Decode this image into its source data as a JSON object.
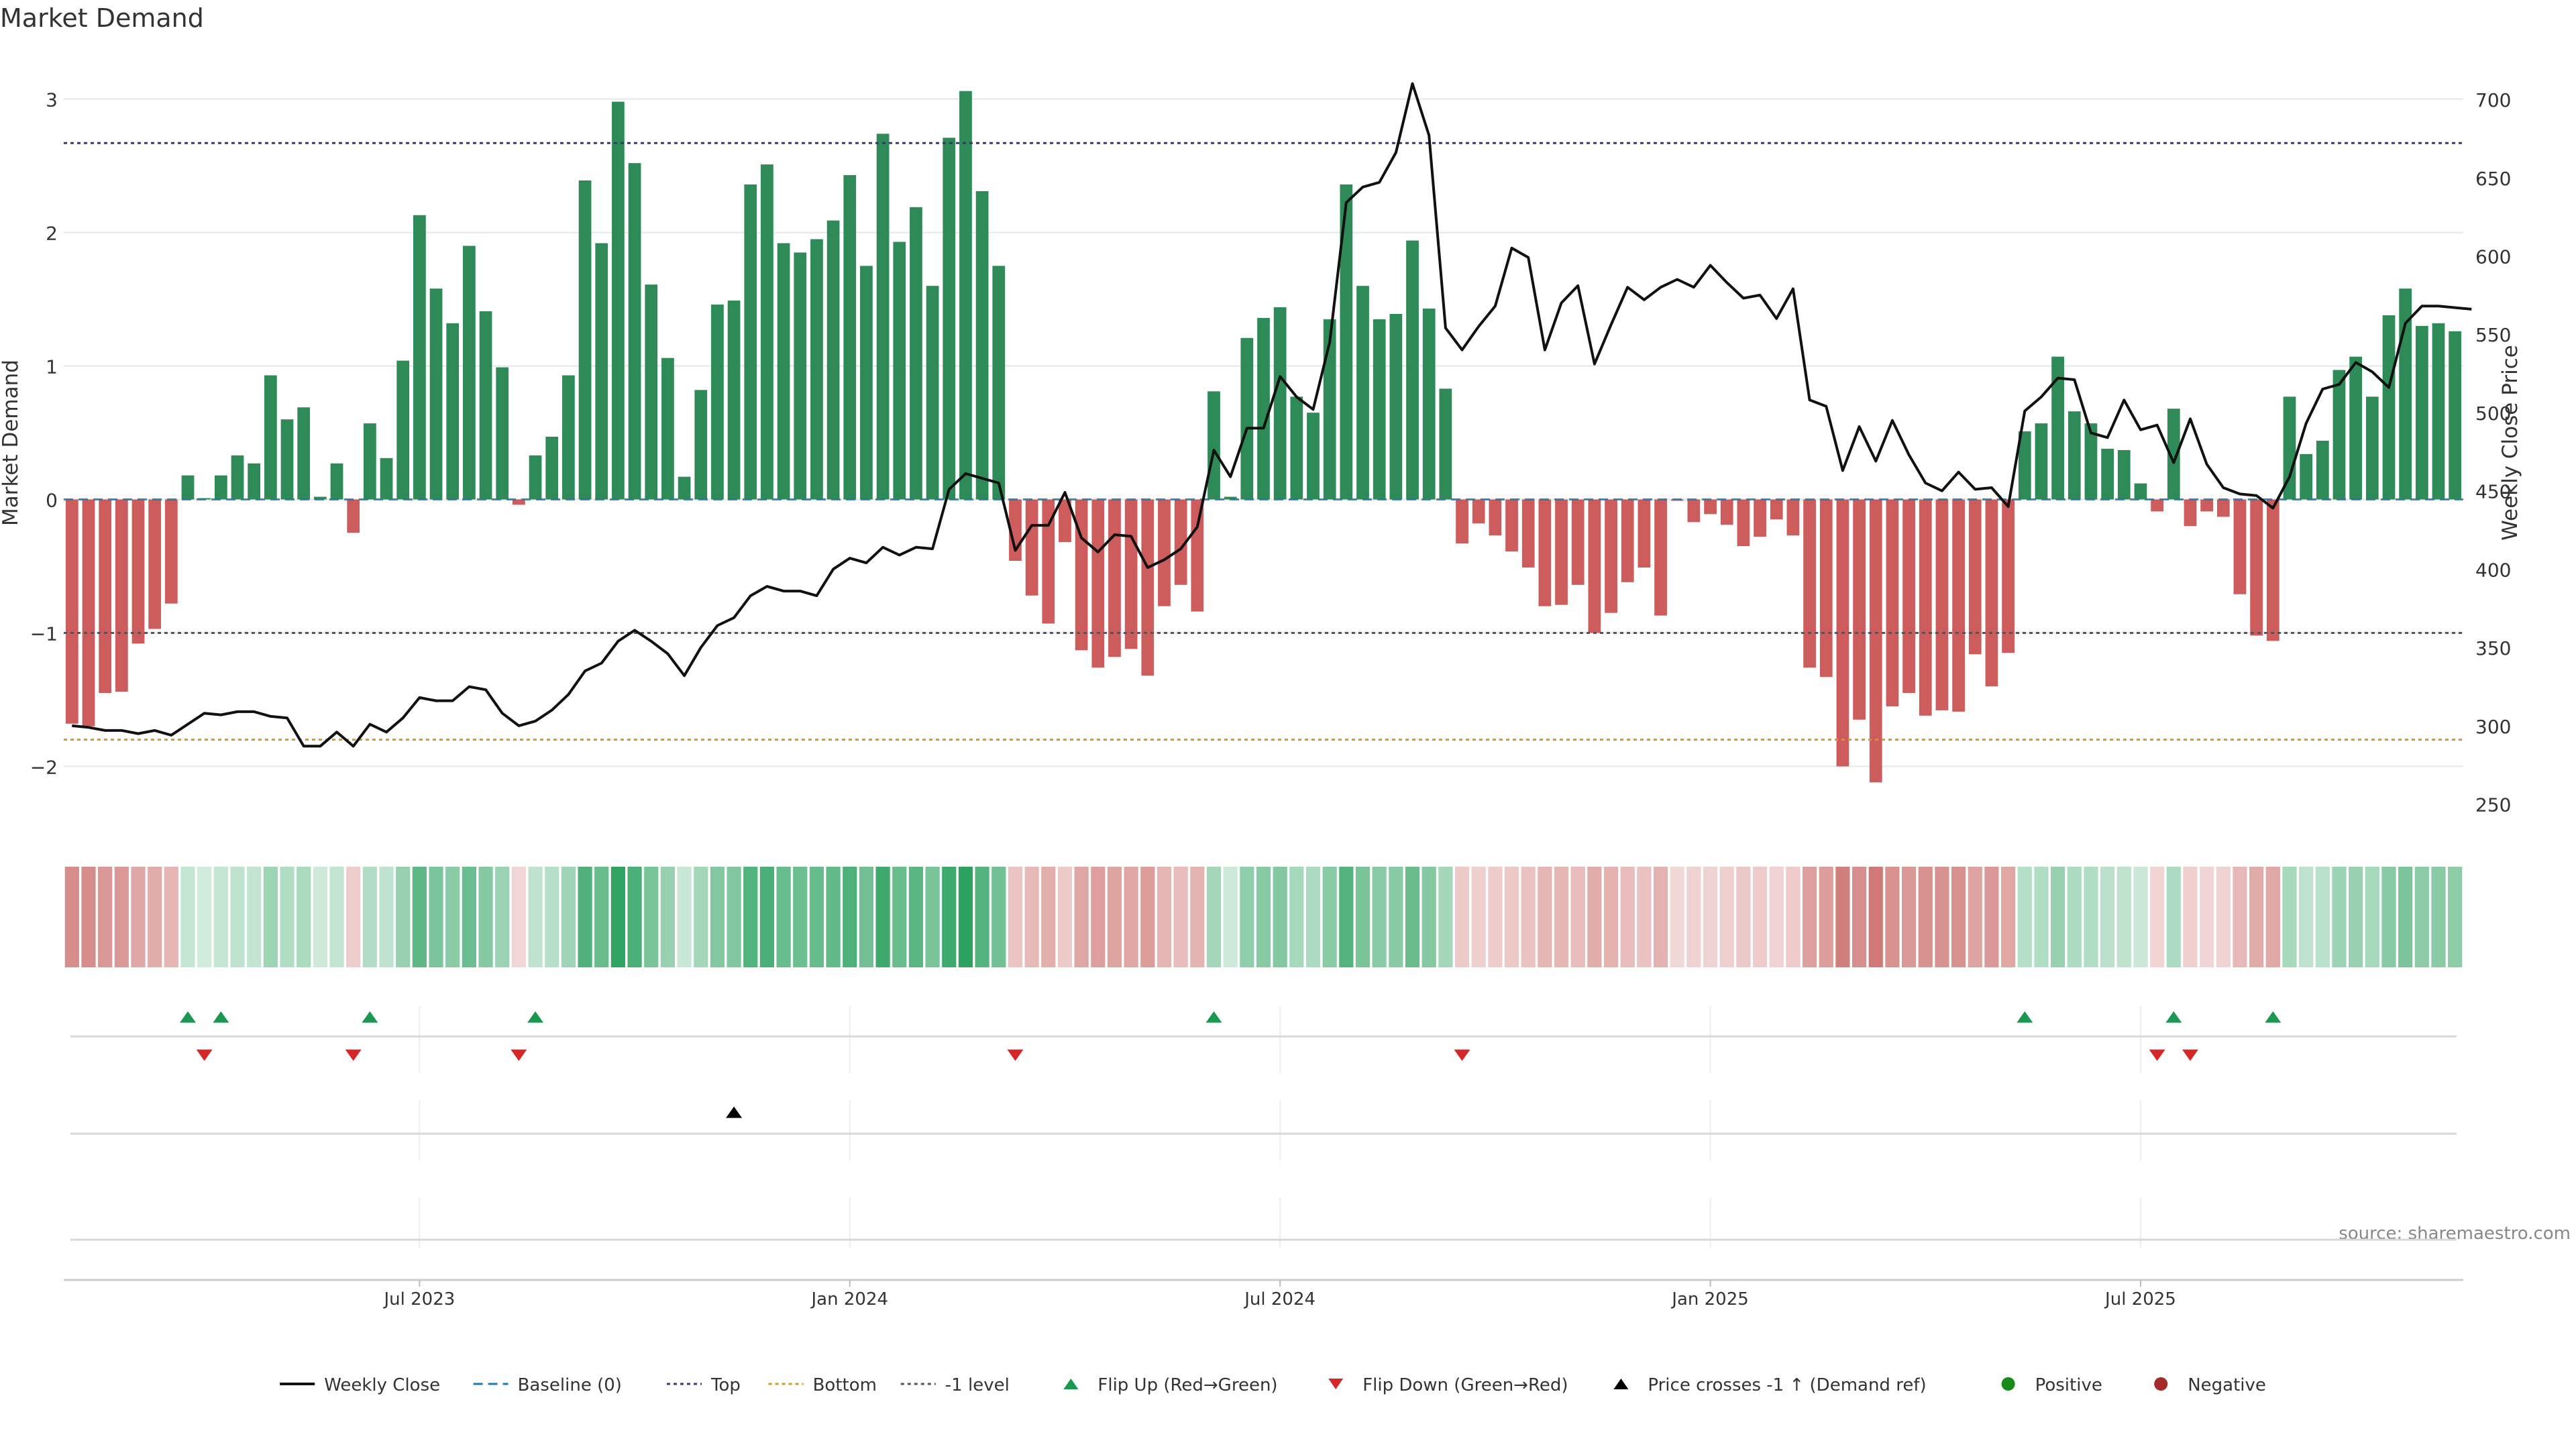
{
  "chart_data": {
    "type": "bar",
    "title": "Market Demand",
    "ylabel_left": "Market Demand",
    "ylabel_right": "Weekly Close Price",
    "source": "source: sharemaestro.com",
    "ylim_left": [
      -2.4,
      3.35
    ],
    "ylim_right": [
      240,
      730
    ],
    "yticks_left": [
      "3",
      "2",
      "1",
      "0",
      "−1",
      "−2"
    ],
    "yticks_right": [
      "700",
      "650",
      "600",
      "550",
      "500",
      "450",
      "400",
      "350",
      "300",
      "250"
    ],
    "yticks_left_values": [
      3,
      2,
      1,
      0,
      -1,
      -2
    ],
    "yticks_right_values": [
      700,
      650,
      600,
      550,
      500,
      450,
      400,
      350,
      300,
      250
    ],
    "x_ticks": [
      {
        "label": "Jul 2023",
        "week": 21
      },
      {
        "label": "Jan 2024",
        "week": 47
      },
      {
        "label": "Jul 2024",
        "week": 73
      },
      {
        "label": "Jan 2025",
        "week": 99
      },
      {
        "label": "Jul 2025",
        "week": 125
      }
    ],
    "reference_lines": {
      "top": 2.67,
      "bottom": -1.8,
      "minus_one": -1.0,
      "baseline": 0
    },
    "demand": [
      -1.68,
      -1.7,
      -1.45,
      -1.44,
      -1.08,
      -0.97,
      -0.78,
      0.18,
      0.01,
      0.18,
      0.33,
      0.27,
      0.93,
      0.6,
      0.69,
      0.02,
      0.27,
      -0.25,
      0.57,
      0.31,
      1.04,
      2.13,
      1.58,
      1.32,
      1.9,
      1.41,
      0.99,
      -0.04,
      0.33,
      0.47,
      0.93,
      2.39,
      1.92,
      2.98,
      2.52,
      1.61,
      1.06,
      0.17,
      0.82,
      1.46,
      1.49,
      2.36,
      2.51,
      1.92,
      1.85,
      1.95,
      2.09,
      2.43,
      1.75,
      2.74,
      1.93,
      2.19,
      1.6,
      2.71,
      3.06,
      2.31,
      1.75,
      -0.46,
      -0.72,
      -0.93,
      -0.32,
      -1.13,
      -1.26,
      -1.18,
      -1.12,
      -1.32,
      -0.8,
      -0.64,
      -0.84,
      0.81,
      0.02,
      1.21,
      1.36,
      1.44,
      0.77,
      0.65,
      1.35,
      2.36,
      1.6,
      1.35,
      1.39,
      1.94,
      1.43,
      0.83,
      -0.33,
      -0.18,
      -0.27,
      -0.39,
      -0.51,
      -0.8,
      -0.79,
      -0.64,
      -1.0,
      -0.85,
      -0.62,
      -0.51,
      -0.87,
      -0.01,
      -0.17,
      -0.11,
      -0.19,
      -0.35,
      -0.28,
      -0.15,
      -0.27,
      -1.26,
      -1.33,
      -2.0,
      -1.65,
      -2.12,
      -1.55,
      -1.45,
      -1.62,
      -1.58,
      -1.59,
      -1.16,
      -1.4,
      -1.15,
      0.51,
      0.57,
      1.07,
      0.66,
      0.57,
      0.38,
      0.37,
      0.12,
      -0.09,
      0.68,
      -0.2,
      -0.09,
      -0.13,
      -0.71,
      -1.02,
      -1.06,
      0.77,
      0.34,
      0.44,
      0.97,
      1.07,
      0.77,
      1.38,
      1.58,
      1.3,
      1.32,
      1.26
    ],
    "price": [
      300,
      299,
      297,
      297,
      295,
      297,
      294,
      301,
      308,
      307,
      309,
      309,
      306,
      305,
      287,
      287,
      296,
      287,
      301,
      296,
      305,
      318,
      316,
      316,
      325,
      323,
      308,
      300,
      303,
      310,
      320,
      335,
      340,
      354,
      361,
      354,
      346,
      332,
      350,
      364,
      369,
      383,
      389,
      386,
      386,
      383,
      400,
      407,
      404,
      414,
      409,
      414,
      413,
      451,
      461,
      458,
      455,
      412,
      428,
      428,
      449,
      420,
      411,
      422,
      421,
      401,
      406,
      413,
      427,
      476,
      459,
      490,
      490,
      523,
      510,
      502,
      545,
      634,
      644,
      647,
      666,
      710,
      677,
      554,
      540,
      555,
      568,
      605,
      599,
      540,
      570,
      581,
      531,
      556,
      580,
      572,
      580,
      585,
      580,
      594,
      583,
      573,
      575,
      560,
      579,
      508,
      504,
      463,
      491,
      469,
      495,
      473,
      455,
      450,
      462,
      451,
      452,
      440,
      501,
      510,
      522,
      521,
      487,
      484,
      508,
      489,
      492,
      468,
      496,
      467,
      452,
      448,
      447,
      439,
      459,
      493,
      515,
      518,
      532,
      526,
      516,
      557,
      568,
      568,
      567,
      566
    ],
    "flip_up_weeks": [
      7,
      9,
      18,
      28,
      69,
      118,
      127,
      133
    ],
    "flip_down_weeks": [
      8,
      17,
      27,
      57,
      84,
      126,
      128
    ],
    "price_cross_weeks": [
      40
    ],
    "legend": [
      {
        "label": "Weekly Close",
        "kind": "line-solid",
        "color": "#111111"
      },
      {
        "label": "Baseline (0)",
        "kind": "line-dash",
        "color": "#1f77b4"
      },
      {
        "label": "Top",
        "kind": "line-dot",
        "color": "#3a3a6a"
      },
      {
        "label": "Bottom",
        "kind": "line-dot",
        "color": "#d49a20"
      },
      {
        "label": "-1 level",
        "kind": "line-dot",
        "color": "#555555"
      },
      {
        "label": "Flip Up (Red→Green)",
        "kind": "tri-up",
        "color": "#1a9850"
      },
      {
        "label": "Flip Down (Green→Red)",
        "kind": "tri-down",
        "color": "#d62728"
      },
      {
        "label": "Price crosses -1 ↑ (Demand ref)",
        "kind": "tri-up",
        "color": "#000000"
      },
      {
        "label": "Positive",
        "kind": "dot",
        "color": "#1a8a1a"
      },
      {
        "label": "Negative",
        "kind": "dot",
        "color": "#a52a2a"
      }
    ],
    "colors": {
      "positive": "#2e8b57",
      "negative": "#cd5c5c",
      "price_line": "#111111",
      "heat_pos": "#2ca25f",
      "heat_neg": "#c0504d",
      "grid": "#e6e6e6"
    }
  }
}
